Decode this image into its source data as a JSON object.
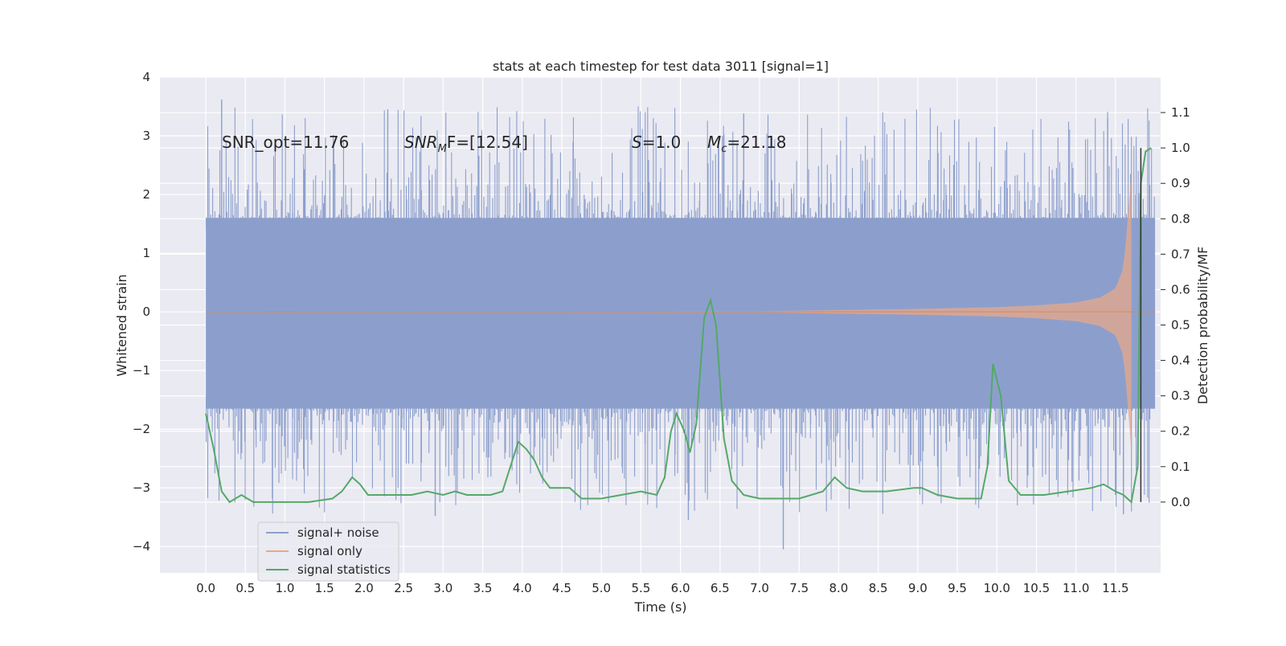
{
  "chart_data": {
    "type": "line",
    "title": "stats at each timestep for test data 3011 [signal=1]",
    "xlabel": "Time (s)",
    "ylabel_left": "Whitened strain",
    "ylabel_right": "Detection probability/MF",
    "xlim": [
      -0.58,
      12.07
    ],
    "ylim_left": [
      -4.45,
      4.0
    ],
    "ylim_right": [
      -0.2,
      1.2
    ],
    "grid": true,
    "legend_placement": "lower-left",
    "x_ticks": [
      "0.0",
      "0.5",
      "1.0",
      "1.5",
      "2.0",
      "2.5",
      "3.0",
      "3.5",
      "4.0",
      "4.5",
      "5.0",
      "5.5",
      "6.0",
      "6.5",
      "7.0",
      "7.5",
      "8.0",
      "8.5",
      "9.0",
      "9.5",
      "10.0",
      "10.5",
      "11.0",
      "11.5"
    ],
    "y_ticks_left": [
      "4",
      "3",
      "2",
      "1",
      "0",
      "−1",
      "−2",
      "−3",
      "−4"
    ],
    "y_ticks_right": [
      "1.1",
      "1.0",
      "0.9",
      "0.8",
      "0.7",
      "0.6",
      "0.5",
      "0.4",
      "0.3",
      "0.2",
      "0.1",
      "0.0"
    ],
    "annotations": {
      "snr_opt": "SNR_opt=11.76",
      "snr_mf_main": "SNR",
      "snr_mf_sub": "M",
      "snr_mf_rest": "F=[12.54]",
      "s_var": "S",
      "s_rest": "=1.0",
      "mc_var": "M",
      "mc_sub": "c",
      "mc_rest": "=21.18"
    },
    "merger_time": 11.82,
    "series": [
      {
        "name": "signal+ noise",
        "color": "#8c9fcc",
        "axis": "left",
        "x_range": [
          0.0,
          12.0
        ],
        "envelope": {
          "typical_upper": 1.6,
          "typical_lower": -1.65,
          "peak_maxima": [
            3.62,
            3.45,
            3.38,
            3.3
          ],
          "peak_minima": [
            -4.05,
            -3.55,
            -3.48,
            -3.45
          ]
        }
      },
      {
        "name": "signal only",
        "color": "#dd8452",
        "axis": "left",
        "x": [
          0.0,
          7.0,
          8.0,
          9.0,
          10.0,
          10.5,
          11.0,
          11.3,
          11.5,
          11.6,
          11.65,
          11.7
        ],
        "amplitude": [
          0.0,
          0.01,
          0.03,
          0.05,
          0.08,
          0.11,
          0.16,
          0.24,
          0.4,
          0.75,
          1.5,
          2.4
        ]
      },
      {
        "name": "signal statistics",
        "color": "#55a868",
        "axis": "right",
        "x": [
          0.0,
          0.05,
          0.1,
          0.2,
          0.3,
          0.45,
          0.6,
          0.75,
          1.0,
          1.3,
          1.6,
          1.72,
          1.85,
          1.95,
          2.05,
          2.2,
          2.4,
          2.6,
          2.8,
          3.0,
          3.15,
          3.3,
          3.45,
          3.6,
          3.75,
          3.85,
          3.95,
          4.05,
          4.15,
          4.25,
          4.35,
          4.45,
          4.6,
          4.75,
          5.0,
          5.25,
          5.5,
          5.7,
          5.8,
          5.88,
          5.95,
          6.05,
          6.12,
          6.2,
          6.3,
          6.38,
          6.45,
          6.55,
          6.65,
          6.8,
          7.0,
          7.3,
          7.5,
          7.8,
          7.95,
          8.1,
          8.3,
          8.6,
          8.95,
          9.05,
          9.25,
          9.5,
          9.8,
          9.88,
          9.95,
          10.05,
          10.15,
          10.3,
          10.6,
          10.9,
          11.2,
          11.35,
          11.5,
          11.6,
          11.7,
          11.78,
          11.82,
          11.88,
          11.95
        ],
        "values": [
          0.25,
          0.2,
          0.15,
          0.03,
          0.0,
          0.02,
          0.0,
          0.0,
          0.0,
          0.0,
          0.01,
          0.03,
          0.07,
          0.05,
          0.02,
          0.02,
          0.02,
          0.02,
          0.03,
          0.02,
          0.03,
          0.02,
          0.02,
          0.02,
          0.03,
          0.1,
          0.17,
          0.15,
          0.12,
          0.07,
          0.04,
          0.04,
          0.04,
          0.01,
          0.01,
          0.02,
          0.03,
          0.02,
          0.07,
          0.2,
          0.25,
          0.2,
          0.14,
          0.22,
          0.52,
          0.57,
          0.5,
          0.18,
          0.06,
          0.02,
          0.01,
          0.01,
          0.01,
          0.03,
          0.07,
          0.04,
          0.03,
          0.03,
          0.04,
          0.04,
          0.02,
          0.01,
          0.01,
          0.1,
          0.39,
          0.3,
          0.06,
          0.02,
          0.02,
          0.03,
          0.04,
          0.05,
          0.03,
          0.02,
          0.0,
          0.1,
          0.9,
          0.99,
          1.0
        ]
      }
    ]
  }
}
